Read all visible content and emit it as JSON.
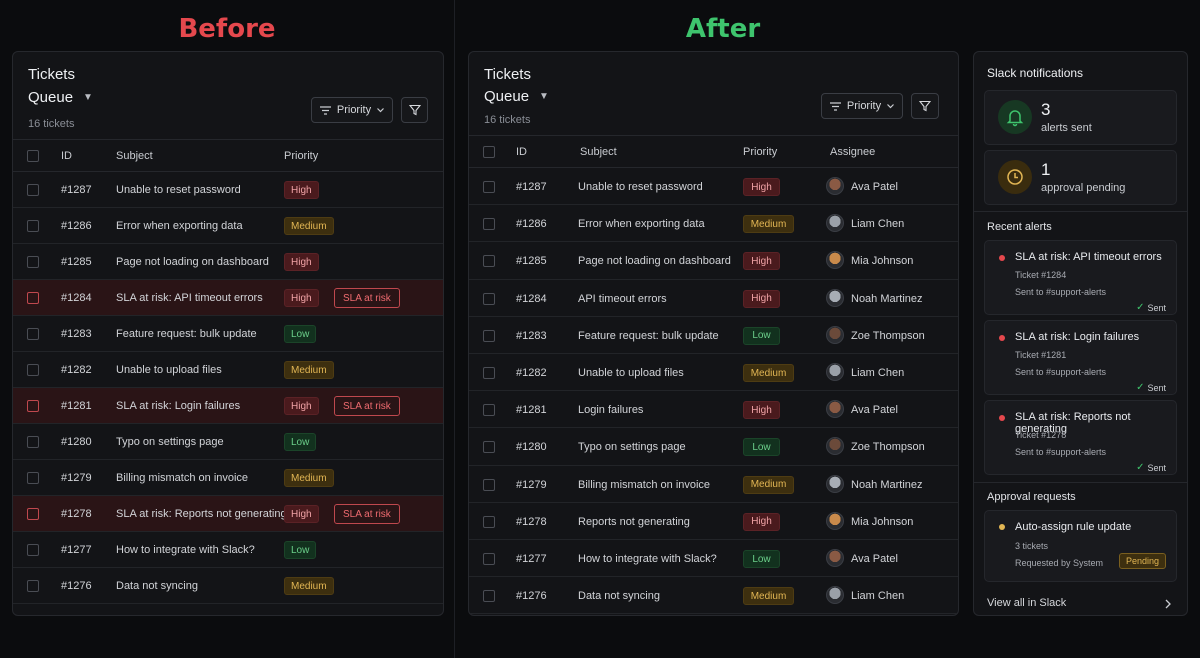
{
  "headings": {
    "before": "Before",
    "after": "After"
  },
  "before": {
    "title": "Tickets",
    "queue": "Queue",
    "count": "16 tickets",
    "priority_button": "Priority",
    "columns": {
      "id": "ID",
      "subject": "Subject",
      "priority": "Priority"
    },
    "rows": [
      {
        "id": "#1287",
        "subject": "Unable to reset password",
        "priority": "High",
        "sla": ""
      },
      {
        "id": "#1286",
        "subject": "Error when exporting data",
        "priority": "Medium",
        "sla": ""
      },
      {
        "id": "#1285",
        "subject": "Page not loading on dashboard",
        "priority": "High",
        "sla": ""
      },
      {
        "id": "#1284",
        "subject": "SLA at risk: API timeout errors",
        "priority": "High",
        "sla": "SLA at risk"
      },
      {
        "id": "#1283",
        "subject": "Feature request: bulk update",
        "priority": "Low",
        "sla": ""
      },
      {
        "id": "#1282",
        "subject": "Unable to upload files",
        "priority": "Medium",
        "sla": ""
      },
      {
        "id": "#1281",
        "subject": "SLA at risk: Login failures",
        "priority": "High",
        "sla": "SLA at risk"
      },
      {
        "id": "#1280",
        "subject": "Typo on settings page",
        "priority": "Low",
        "sla": ""
      },
      {
        "id": "#1279",
        "subject": "Billing mismatch on invoice",
        "priority": "Medium",
        "sla": ""
      },
      {
        "id": "#1278",
        "subject": "SLA at risk: Reports not generating",
        "priority": "High",
        "sla": "SLA at risk"
      },
      {
        "id": "#1277",
        "subject": "How to integrate with Slack?",
        "priority": "Low",
        "sla": ""
      },
      {
        "id": "#1276",
        "subject": "Data not syncing",
        "priority": "Medium",
        "sla": ""
      }
    ]
  },
  "after": {
    "title": "Tickets",
    "queue": "Queue",
    "count": "16 tickets",
    "priority_button": "Priority",
    "columns": {
      "id": "ID",
      "subject": "Subject",
      "priority": "Priority",
      "assignee": "Assignee"
    },
    "rows": [
      {
        "id": "#1287",
        "subject": "Unable to reset password",
        "priority": "High",
        "assignee": "Ava Patel",
        "avatar_color": "#8a5a44"
      },
      {
        "id": "#1286",
        "subject": "Error when exporting data",
        "priority": "Medium",
        "assignee": "Liam Chen",
        "avatar_color": "#9aa0a8"
      },
      {
        "id": "#1285",
        "subject": "Page not loading on dashboard",
        "priority": "High",
        "assignee": "Mia Johnson",
        "avatar_color": "#c98a4b"
      },
      {
        "id": "#1284",
        "subject": "API timeout errors",
        "priority": "High",
        "assignee": "Noah Martinez",
        "avatar_color": "#a7adb5"
      },
      {
        "id": "#1283",
        "subject": "Feature request: bulk update",
        "priority": "Low",
        "assignee": "Zoe Thompson",
        "avatar_color": "#6b4a3a"
      },
      {
        "id": "#1282",
        "subject": "Unable to upload files",
        "priority": "Medium",
        "assignee": "Liam Chen",
        "avatar_color": "#9aa0a8"
      },
      {
        "id": "#1281",
        "subject": "Login failures",
        "priority": "High",
        "assignee": "Ava Patel",
        "avatar_color": "#8a5a44"
      },
      {
        "id": "#1280",
        "subject": "Typo on settings page",
        "priority": "Low",
        "assignee": "Zoe Thompson",
        "avatar_color": "#6b4a3a"
      },
      {
        "id": "#1279",
        "subject": "Billing mismatch on invoice",
        "priority": "Medium",
        "assignee": "Noah Martinez",
        "avatar_color": "#a7adb5"
      },
      {
        "id": "#1278",
        "subject": "Reports not generating",
        "priority": "High",
        "assignee": "Mia Johnson",
        "avatar_color": "#c98a4b"
      },
      {
        "id": "#1277",
        "subject": "How to integrate with Slack?",
        "priority": "Low",
        "assignee": "Ava Patel",
        "avatar_color": "#8a5a44"
      },
      {
        "id": "#1276",
        "subject": "Data not syncing",
        "priority": "Medium",
        "assignee": "Liam Chen",
        "avatar_color": "#9aa0a8"
      }
    ]
  },
  "slack": {
    "title": "Slack notifications",
    "stats": [
      {
        "value": "3",
        "label": "alerts sent",
        "icon": "bell-icon",
        "color": "#3ec46d"
      },
      {
        "value": "1",
        "label": "approval pending",
        "icon": "clock-icon",
        "color": "#e2b654"
      }
    ],
    "recent_title": "Recent alerts",
    "alerts": [
      {
        "title": "SLA at risk: API timeout errors",
        "ticket": "Ticket #1284",
        "channel": "Sent to #support-alerts",
        "status": "Sent"
      },
      {
        "title": "SLA at risk: Login failures",
        "ticket": "Ticket #1281",
        "channel": "Sent to #support-alerts",
        "status": "Sent"
      },
      {
        "title": "SLA at risk: Reports not generating",
        "ticket": "Ticket #1278",
        "channel": "Sent to #support-alerts",
        "status": "Sent"
      }
    ],
    "approval_title": "Approval requests",
    "approval": {
      "title": "Auto-assign rule update",
      "count": "3 tickets",
      "requested": "Requested by System",
      "status": "Pending"
    },
    "view_all": "View all in Slack"
  },
  "colors": {
    "before_heading": "#e5484d",
    "after_heading": "#3ec46d",
    "risk_row": "#2a1416"
  }
}
